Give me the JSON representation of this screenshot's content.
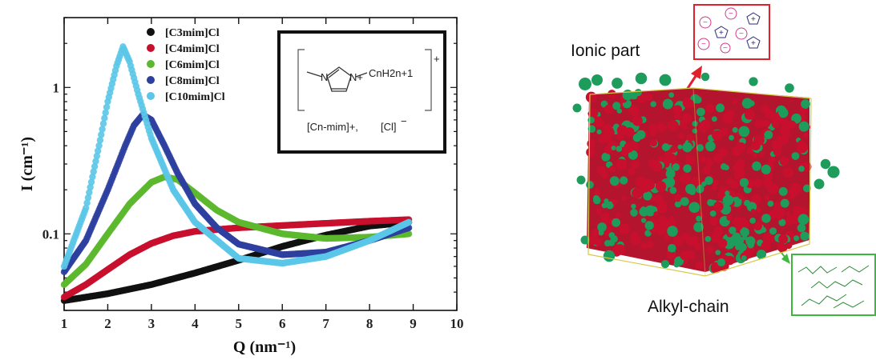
{
  "chart_data": {
    "type": "scatter",
    "xlabel": "Q (nm⁻¹)",
    "ylabel": "I (cm⁻¹)",
    "xlim": [
      1,
      10
    ],
    "ylim": [
      0.03,
      3
    ],
    "yscale": "log",
    "x_ticks": [
      "1",
      "2",
      "3",
      "4",
      "5",
      "6",
      "7",
      "8",
      "9",
      "10"
    ],
    "y_ticks": [
      "0.1",
      "1"
    ],
    "legend_position": "top-center",
    "series": [
      {
        "name": "[C3mim]Cl",
        "color": "#111111",
        "x": [
          1.0,
          2.0,
          3.0,
          4.0,
          5.0,
          6.0,
          7.0,
          8.0,
          8.9
        ],
        "y": [
          0.035,
          0.039,
          0.045,
          0.054,
          0.066,
          0.082,
          0.098,
          0.113,
          0.12
        ]
      },
      {
        "name": "[C4mim]Cl",
        "color": "#c8102e",
        "x": [
          1.0,
          1.5,
          2.0,
          2.5,
          3.0,
          3.5,
          4.0,
          5.0,
          6.0,
          7.0,
          8.0,
          8.9
        ],
        "y": [
          0.037,
          0.045,
          0.057,
          0.072,
          0.086,
          0.097,
          0.104,
          0.11,
          0.114,
          0.118,
          0.122,
          0.125
        ]
      },
      {
        "name": "[C6mim]Cl",
        "color": "#5cb82e",
        "x": [
          1.0,
          1.5,
          2.0,
          2.5,
          3.0,
          3.3,
          3.6,
          4.0,
          4.5,
          5.0,
          6.0,
          7.0,
          8.0,
          8.9
        ],
        "y": [
          0.045,
          0.062,
          0.1,
          0.16,
          0.225,
          0.245,
          0.235,
          0.19,
          0.145,
          0.12,
          0.1,
          0.093,
          0.095,
          0.1
        ]
      },
      {
        "name": "[C8mim]Cl",
        "color": "#2e3f9e",
        "x": [
          1.0,
          1.5,
          2.0,
          2.4,
          2.6,
          2.8,
          3.0,
          3.3,
          3.6,
          4.0,
          4.5,
          5.0,
          6.0,
          7.0,
          8.0,
          8.9
        ],
        "y": [
          0.055,
          0.09,
          0.2,
          0.4,
          0.55,
          0.65,
          0.6,
          0.4,
          0.26,
          0.16,
          0.11,
          0.085,
          0.072,
          0.075,
          0.09,
          0.11
        ]
      },
      {
        "name": "[C10mim]Cl",
        "color": "#5bc6e8",
        "x": [
          1.0,
          1.5,
          1.8,
          2.0,
          2.2,
          2.35,
          2.5,
          2.7,
          3.0,
          3.5,
          4.0,
          5.0,
          6.0,
          7.0,
          8.0,
          8.9
        ],
        "y": [
          0.06,
          0.15,
          0.4,
          0.8,
          1.4,
          1.9,
          1.5,
          0.9,
          0.45,
          0.2,
          0.12,
          0.068,
          0.063,
          0.07,
          0.09,
          0.12
        ]
      }
    ]
  },
  "inset": {
    "formula_sup": "+",
    "cation_label": "[Cn-mim]+,",
    "anion_label": "[Cl]",
    "anion_sup": "−",
    "chain_label": "CnH2n+1",
    "n_label": "N",
    "n_plus_label": "N+"
  },
  "simulation": {
    "ionic_label": "Ionic part",
    "alkyl_label": "Alkyl-chain",
    "ionic_color": "#c8102e",
    "alkyl_color": "#1e9c5c"
  }
}
